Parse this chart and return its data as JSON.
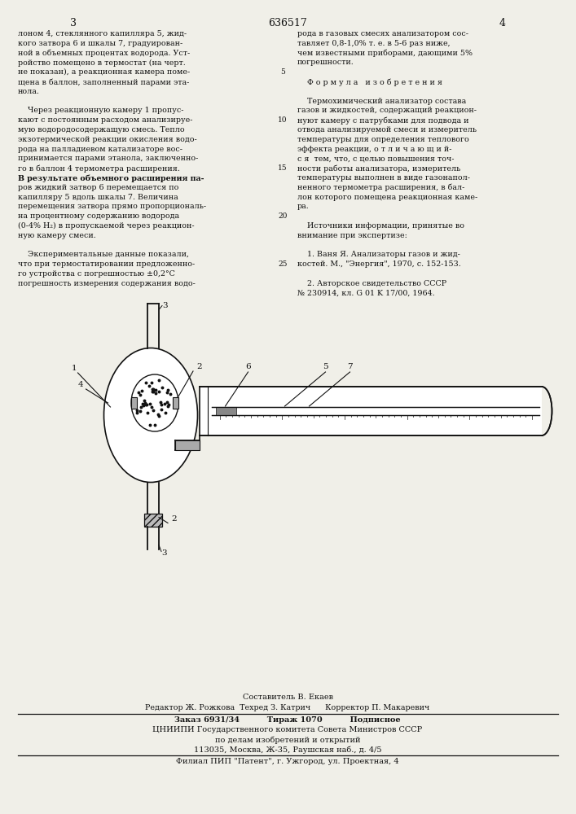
{
  "page_color": "#f0efe8",
  "text_color": "#111111",
  "line_color": "#111111",
  "header_num_left": "3",
  "header_num_center": "636517",
  "header_num_right": "4",
  "col_left_lines": [
    "лоном 4, стеклянного капилляра 5, жид-",
    "кого затвора 6 и шкалы 7, градуирован-",
    "ной в объемных процентах водорода. Уст-",
    "ройство помещено в термостат (на черт.",
    "не показан), а реакционная камера поме-",
    "щена в баллон, заполненный парами эта-",
    "нола.",
    "",
    "    Через реакционную камеру 1 пропус-",
    "кают с постоянным расходом анализируе-",
    "мую водородосодержащую смесь. Тепло",
    "экзотермической реакции окисления водо-",
    "рода на палладиевом катализаторе вос-",
    "принимается парами этанола, заключенно-",
    "го в баллон 4 термометра расширения.",
    "В результате объемного расширения па-",
    "ров жидкий затвор 6 перемещается по",
    "капилляру 5 вдоль шкалы 7. Величина",
    "перемещения затвора прямо пропорциональ-",
    "на процентному содержанию водорода",
    "(0-4% H₂) в пропускаемой через реакцион-",
    "ную камеру смеси.",
    "",
    "    Экспериментальные данные показали,",
    "что при термостатировании предложенно-",
    "го устройства с погрешностью ±0,2°С",
    "погрешность измерения содержания водо-"
  ],
  "col_right_lines": [
    "рода в газовых смесях анализатором сос-",
    "тавляет 0,8-1,0% т. е. в 5-6 раз ниже,",
    "чем известными приборами, дающими 5%",
    "погрешности.",
    "",
    "    Ф о р м у л а   и з о б р е т е н и я",
    "",
    "    Термохимический анализатор состава",
    "газов и жидкостей, содержащий реакцион-",
    "нуют камеру с патрубками для подвода и",
    "отвода анализируемой смеси и измеритель",
    "температуры для определения теплового",
    "эффекта реакции, о т л и ч а ю щ и й-",
    "с я  тем, что, с целью повышения точ-",
    "ности работы анализатора, измеритель",
    "температуры выполнен в виде газонапол-",
    "ненного термометра расширения, в бал-",
    "лон которого помещена реакционная каме-",
    "ра.",
    "",
    "    Источники информации, принятые во",
    "внимание при экспертизе:",
    "",
    "    1. Ваня Я. Анализаторы газов и жид-",
    "костей. М., \"Энергия\", 1970, с. 152-153.",
    "",
    "    2. Авторское свидетельство СССР",
    "№ 230914, кл. G 01 K 17/00, 1964."
  ],
  "footer_line1": "Составитель В. Екаев",
  "footer_line2": "Редактор Ж. Рожкова  Техред З. Катрич      Корректор П. Макаревич",
  "footer_line3": "Заказ 6931/34          Тираж 1070          Подписное",
  "footer_line4": "ЦНИИПИ Государственного комитета Совета Министров СССР",
  "footer_line5": "по делам изобретений и открытий",
  "footer_line6": "113035, Москва, Ж-35, Раушская наб., д. 4/5",
  "footer_line7": "Филиал ПИП \"Патент\", г. Ужгород, ул. Проектная, 4"
}
